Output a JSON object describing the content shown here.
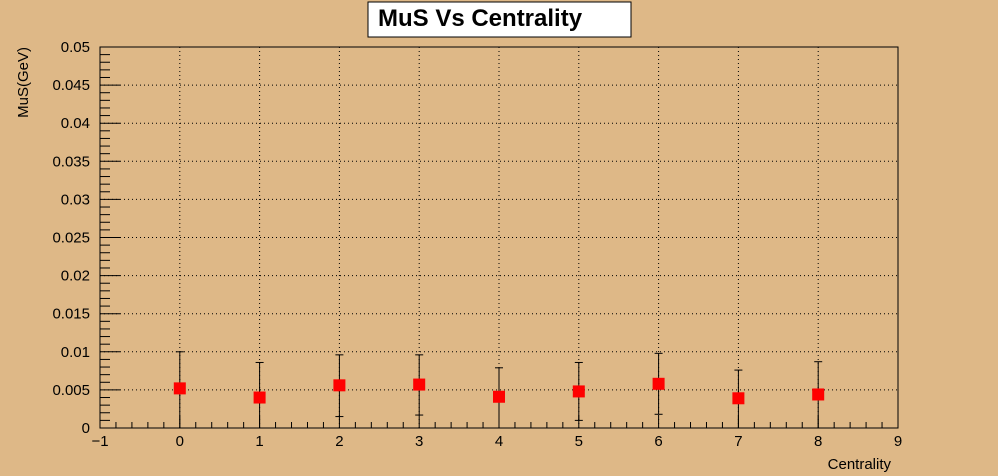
{
  "chart_data": {
    "type": "scatter",
    "title": "MuS Vs Centrality",
    "xlabel": "Centrality",
    "ylabel": "MuS(GeV)",
    "xlim": [
      -1,
      9
    ],
    "ylim": [
      0,
      0.05
    ],
    "x_ticks": [
      -1,
      0,
      1,
      2,
      3,
      4,
      5,
      6,
      7,
      8,
      9
    ],
    "x_tick_labels": [
      "−1",
      "0",
      "1",
      "2",
      "3",
      "4",
      "5",
      "6",
      "7",
      "8",
      "9"
    ],
    "y_ticks": [
      0,
      0.005,
      0.01,
      0.015,
      0.02,
      0.025,
      0.03,
      0.035,
      0.04,
      0.045,
      0.05
    ],
    "y_tick_labels": [
      "0",
      "0.005",
      "0.01",
      "0.015",
      "0.02",
      "0.025",
      "0.03",
      "0.035",
      "0.04",
      "0.045",
      "0.05"
    ],
    "grid": true,
    "series": [
      {
        "color": "#ff0000",
        "marker": "square",
        "x": [
          0,
          1,
          2,
          3,
          4,
          5,
          6,
          7,
          8
        ],
        "y": [
          0.0052,
          0.004,
          0.0056,
          0.0057,
          0.0041,
          0.0048,
          0.0058,
          0.0039,
          0.0044
        ],
        "yerr_low": [
          0.0052,
          0.004,
          0.0041,
          0.004,
          0.0041,
          0.0038,
          0.004,
          0.0039,
          0.0044
        ],
        "yerr_high": [
          0.0048,
          0.0046,
          0.004,
          0.0039,
          0.0038,
          0.0038,
          0.004,
          0.0037,
          0.0043
        ]
      }
    ]
  }
}
